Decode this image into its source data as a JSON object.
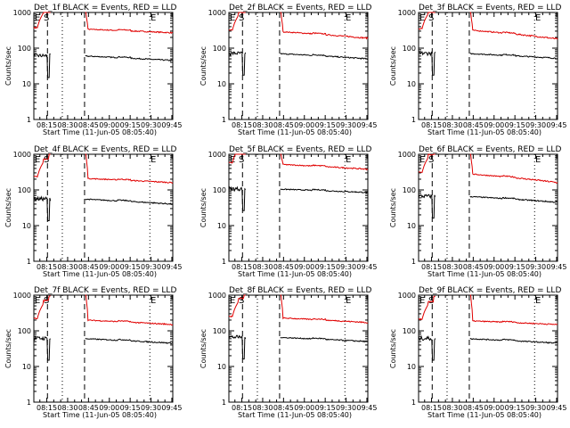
{
  "colors": {
    "events": "#000000",
    "lld": "#e00000",
    "axes": "#000000",
    "background": "#ffffff"
  },
  "common": {
    "ylabel": "Counts/sec",
    "xlabel": "Start Time (11-Jun-05 08:05:40)",
    "xticks": [
      "08:15",
      "08:30",
      "08:45",
      "09:00",
      "09:15",
      "09:30",
      "09:45"
    ],
    "yticks": [
      "1",
      "10",
      "100",
      "1000"
    ],
    "ylim": [
      1,
      1000
    ],
    "xlim_minutes_from_start": [
      0,
      100
    ],
    "markers": [
      "E",
      "S",
      "E"
    ]
  },
  "chart_data": [
    {
      "type": "line",
      "title": "Det_1f BLACK = Events, RED = LLD",
      "series": [
        {
          "name": "Events",
          "level": 60,
          "end": 45
        },
        {
          "name": "LLD",
          "level": 340,
          "end": 270
        }
      ]
    },
    {
      "type": "line",
      "title": "Det_2f BLACK = Events, RED = LLD",
      "series": [
        {
          "name": "Events",
          "level": 70,
          "end": 50
        },
        {
          "name": "LLD",
          "level": 290,
          "end": 190
        }
      ]
    },
    {
      "type": "line",
      "title": "Det_3f BLACK = Events, RED = LLD",
      "series": [
        {
          "name": "Events",
          "level": 70,
          "end": 52
        },
        {
          "name": "LLD",
          "level": 320,
          "end": 180
        }
      ]
    },
    {
      "type": "line",
      "title": "Det_4f BLACK = Events, RED = LLD",
      "series": [
        {
          "name": "Events",
          "level": 55,
          "end": 40
        },
        {
          "name": "LLD",
          "level": 210,
          "end": 160
        }
      ]
    },
    {
      "type": "line",
      "title": "Det_5f BLACK = Events, RED = LLD",
      "series": [
        {
          "name": "Events",
          "level": 105,
          "end": 85
        },
        {
          "name": "LLD",
          "level": 520,
          "end": 380
        }
      ]
    },
    {
      "type": "line",
      "title": "Det_6f BLACK = Events, RED = LLD",
      "series": [
        {
          "name": "Events",
          "level": 65,
          "end": 45
        },
        {
          "name": "LLD",
          "level": 280,
          "end": 160
        }
      ]
    },
    {
      "type": "line",
      "title": "Det_7f BLACK = Events, RED = LLD",
      "series": [
        {
          "name": "Events",
          "level": 60,
          "end": 45
        },
        {
          "name": "LLD",
          "level": 200,
          "end": 150
        }
      ]
    },
    {
      "type": "line",
      "title": "Det_8f BLACK = Events, RED = LLD",
      "series": [
        {
          "name": "Events",
          "level": 65,
          "end": 50
        },
        {
          "name": "LLD",
          "level": 230,
          "end": 170
        }
      ]
    },
    {
      "type": "line",
      "title": "Det_9f BLACK = Events, RED = LLD",
      "series": [
        {
          "name": "Events",
          "level": 60,
          "end": 45
        },
        {
          "name": "LLD",
          "level": 190,
          "end": 150
        }
      ]
    }
  ]
}
